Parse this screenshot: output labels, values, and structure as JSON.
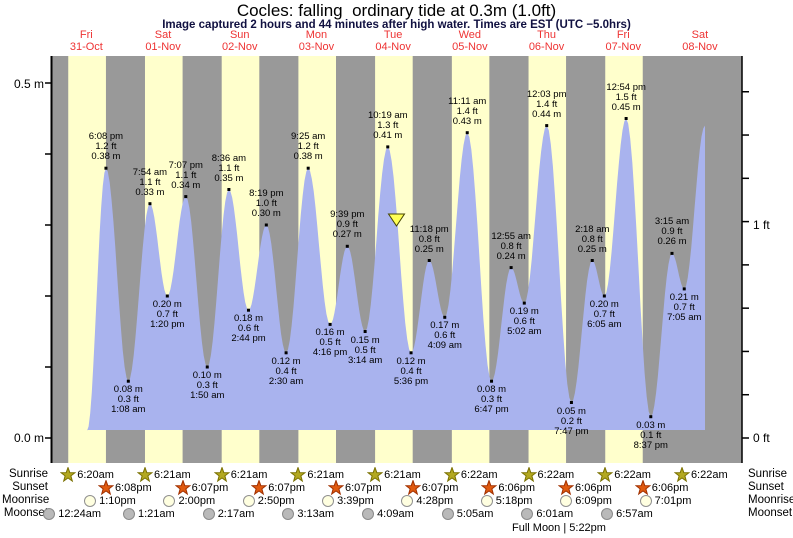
{
  "title": "Cocles: falling  ordinary tide at 0.3m (1.0ft)",
  "subtitle": "Image captured 2 hours and 44 minutes after high water. Times are EST (UTC −5.0hrs)",
  "days": [
    {
      "dow": "Fri",
      "date": "31-Oct"
    },
    {
      "dow": "Sat",
      "date": "01-Nov"
    },
    {
      "dow": "Sun",
      "date": "02-Nov"
    },
    {
      "dow": "Mon",
      "date": "03-Nov"
    },
    {
      "dow": "Tue",
      "date": "04-Nov"
    },
    {
      "dow": "Wed",
      "date": "05-Nov"
    },
    {
      "dow": "Thu",
      "date": "06-Nov"
    },
    {
      "dow": "Fri",
      "date": "07-Nov"
    },
    {
      "dow": "Sat",
      "date": "08-Nov"
    }
  ],
  "y_axis": {
    "left_labels": [
      {
        "text": "0.5 m",
        "v": 0.5
      },
      {
        "text": "0.0 m",
        "v": 0.0
      }
    ],
    "right_labels": [
      {
        "text": "1 ft",
        "ft": 1
      },
      {
        "text": "0 ft",
        "ft": 0
      }
    ]
  },
  "chart_data": {
    "type": "area",
    "title": "Cocles tide height",
    "x_unit": "days (31-Oct to 08-Nov)",
    "y_unit_left": "m",
    "y_unit_right": "ft",
    "y_range_m": [
      0.0,
      0.55
    ],
    "night_color": "#999999",
    "daylight_color": "#ffffcc",
    "fill_color": "#a9b3ee",
    "marker_color": "#ffff55",
    "extremes": [
      {
        "day": 0,
        "time": "6:08 pm",
        "kind": "high",
        "m": 0.38,
        "ft": 1.2
      },
      {
        "day": 1,
        "time": "1:08 am",
        "kind": "low",
        "m": 0.08,
        "ft": 0.3
      },
      {
        "day": 1,
        "time": "7:54 am",
        "kind": "high",
        "m": 0.33,
        "ft": 1.1
      },
      {
        "day": 1,
        "time": "1:20 pm",
        "kind": "low",
        "m": 0.2,
        "ft": 0.7
      },
      {
        "day": 1,
        "time": "7:07 pm",
        "kind": "high",
        "m": 0.34,
        "ft": 1.1
      },
      {
        "day": 2,
        "time": "1:50 am",
        "kind": "low",
        "m": 0.1,
        "ft": 0.3
      },
      {
        "day": 2,
        "time": "8:36 am",
        "kind": "high",
        "m": 0.35,
        "ft": 1.1
      },
      {
        "day": 2,
        "time": "2:44 pm",
        "kind": "low",
        "m": 0.18,
        "ft": 0.6
      },
      {
        "day": 2,
        "time": "8:19 pm",
        "kind": "high",
        "m": 0.3,
        "ft": 1.0
      },
      {
        "day": 3,
        "time": "2:30 am",
        "kind": "low",
        "m": 0.12,
        "ft": 0.4
      },
      {
        "day": 3,
        "time": "9:25 am",
        "kind": "high",
        "m": 0.38,
        "ft": 1.2
      },
      {
        "day": 3,
        "time": "4:16 pm",
        "kind": "low",
        "m": 0.16,
        "ft": 0.5
      },
      {
        "day": 3,
        "time": "9:39 pm",
        "kind": "high",
        "m": 0.27,
        "ft": 0.9
      },
      {
        "day": 4,
        "time": "3:14 am",
        "kind": "low",
        "m": 0.15,
        "ft": 0.5
      },
      {
        "day": 4,
        "time": "10:19 am",
        "kind": "high",
        "m": 0.41,
        "ft": 1.3
      },
      {
        "day": 4,
        "time": "5:36 pm",
        "kind": "low",
        "m": 0.12,
        "ft": 0.4
      },
      {
        "day": 4,
        "time": "11:18 pm",
        "kind": "high",
        "m": 0.25,
        "ft": 0.8
      },
      {
        "day": 5,
        "time": "4:09 am",
        "kind": "low",
        "m": 0.17,
        "ft": 0.6
      },
      {
        "day": 5,
        "time": "11:11 am",
        "kind": "high",
        "m": 0.43,
        "ft": 1.4
      },
      {
        "day": 5,
        "time": "6:47 pm",
        "kind": "low",
        "m": 0.08,
        "ft": 0.3
      },
      {
        "day": 6,
        "time": "12:55 am",
        "kind": "high",
        "m": 0.24,
        "ft": 0.8
      },
      {
        "day": 6,
        "time": "5:02 am",
        "kind": "low",
        "m": 0.19,
        "ft": 0.6
      },
      {
        "day": 6,
        "time": "12:03 pm",
        "kind": "high",
        "m": 0.44,
        "ft": 1.4
      },
      {
        "day": 6,
        "time": "7:47 pm",
        "kind": "low",
        "m": 0.05,
        "ft": 0.2
      },
      {
        "day": 7,
        "time": "2:18 am",
        "kind": "high",
        "m": 0.25,
        "ft": 0.8
      },
      {
        "day": 7,
        "time": "6:05 am",
        "kind": "low",
        "m": 0.2,
        "ft": 0.7
      },
      {
        "day": 7,
        "time": "12:54 pm",
        "kind": "high",
        "m": 0.45,
        "ft": 1.5
      },
      {
        "day": 7,
        "time": "8:37 pm",
        "kind": "low",
        "m": 0.03,
        "ft": 0.1
      },
      {
        "day": 8,
        "time": "3:15 am",
        "kind": "high",
        "m": 0.26,
        "ft": 0.9
      },
      {
        "day": 8,
        "time": "7:05 am",
        "kind": "low",
        "m": 0.21,
        "ft": 0.7
      }
    ],
    "visible_start": {
      "day_t": 0.509,
      "m": 0.01
    },
    "visible_end": {
      "day_t": 8.566,
      "m": 0.44
    },
    "current_marker": {
      "day": 4,
      "hour": 13.05,
      "m": 0.3
    }
  },
  "astro": {
    "rows": [
      {
        "label": "Sunrise",
        "icon": "sunrise-star-icon",
        "shape": "star",
        "fill": "#b3a820",
        "stroke": "#7a7000",
        "times": [
          "6:20am",
          "6:21am",
          "6:21am",
          "6:21am",
          "6:21am",
          "6:22am",
          "6:22am",
          "6:22am",
          "6:22am"
        ]
      },
      {
        "label": "Sunset",
        "icon": "sunset-star-icon",
        "shape": "star",
        "fill": "#e05a10",
        "stroke": "#a03000",
        "times": [
          "6:08pm",
          "6:07pm",
          "6:07pm",
          "6:07pm",
          "6:07pm",
          "6:06pm",
          "6:06pm",
          "6:06pm"
        ]
      },
      {
        "label": "Moonrise",
        "icon": "moonrise-moon-icon",
        "shape": "moon",
        "fill": "#ffffe0",
        "stroke": "#909090",
        "times": [
          "1:10pm",
          "2:00pm",
          "2:50pm",
          "3:39pm",
          "4:28pm",
          "5:18pm",
          "6:09pm",
          "7:01pm"
        ]
      },
      {
        "label": "Moonset",
        "icon": "moonset-moon-icon",
        "shape": "moon",
        "fill": "#b9b9b9",
        "stroke": "#8a8a8a",
        "times": [
          "12:24am",
          "1:21am",
          "2:17am",
          "3:13am",
          "4:09am",
          "5:05am",
          "6:01am",
          "6:57am"
        ]
      }
    ],
    "footer": "Full Moon | 5:22pm"
  }
}
